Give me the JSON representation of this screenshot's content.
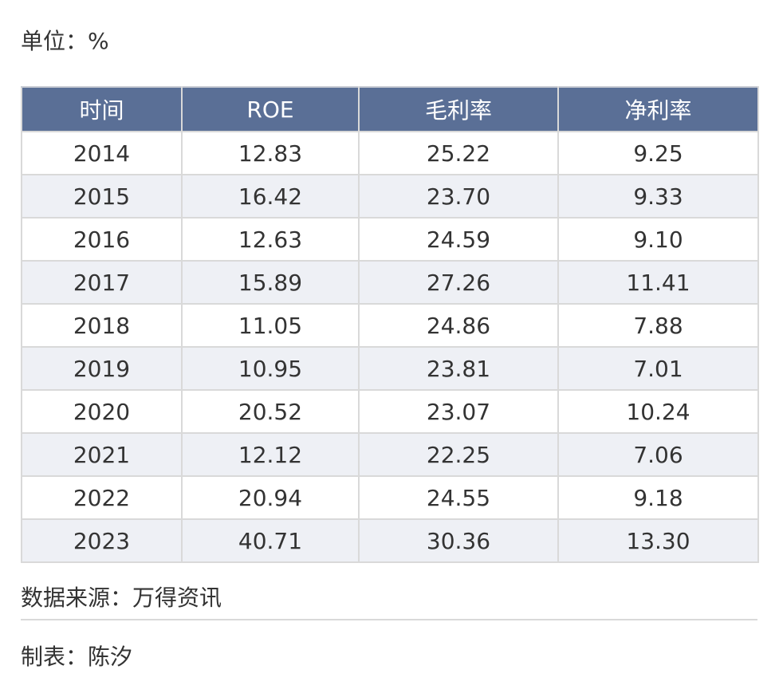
{
  "unit_label": "单位：%",
  "table": {
    "headers": [
      "时间",
      "ROE",
      "毛利率",
      "净利率"
    ],
    "rows": [
      [
        "2014",
        "12.83",
        "25.22",
        "9.25"
      ],
      [
        "2015",
        "16.42",
        "23.70",
        "9.33"
      ],
      [
        "2016",
        "12.63",
        "24.59",
        "9.10"
      ],
      [
        "2017",
        "15.89",
        "27.26",
        "11.41"
      ],
      [
        "2018",
        "11.05",
        "24.86",
        "7.88"
      ],
      [
        "2019",
        "10.95",
        "23.81",
        "7.01"
      ],
      [
        "2020",
        "20.52",
        "23.07",
        "10.24"
      ],
      [
        "2021",
        "12.12",
        "22.25",
        "7.06"
      ],
      [
        "2022",
        "20.94",
        "24.55",
        "9.18"
      ],
      [
        "2023",
        "40.71",
        "30.36",
        "13.30"
      ]
    ]
  },
  "footer": {
    "source": "数据来源：万得资讯",
    "maker": "制表：陈汐"
  },
  "colors": {
    "header_bg": "#5a6f96",
    "header_text": "#ffffff",
    "row_alt_bg": "#eef0f5",
    "border": "#d9d9d9"
  },
  "chart_data": {
    "type": "table",
    "unit": "%",
    "columns": [
      "时间",
      "ROE",
      "毛利率",
      "净利率"
    ],
    "x": [
      "2014",
      "2015",
      "2016",
      "2017",
      "2018",
      "2019",
      "2020",
      "2021",
      "2022",
      "2023"
    ],
    "series": [
      {
        "name": "ROE",
        "values": [
          12.83,
          16.42,
          12.63,
          15.89,
          11.05,
          10.95,
          20.52,
          12.12,
          20.94,
          40.71
        ]
      },
      {
        "name": "毛利率",
        "values": [
          25.22,
          23.7,
          24.59,
          27.26,
          24.86,
          23.81,
          23.07,
          22.25,
          24.55,
          30.36
        ]
      },
      {
        "name": "净利率",
        "values": [
          9.25,
          9.33,
          9.1,
          11.41,
          7.88,
          7.01,
          10.24,
          7.06,
          9.18,
          13.3
        ]
      }
    ]
  }
}
